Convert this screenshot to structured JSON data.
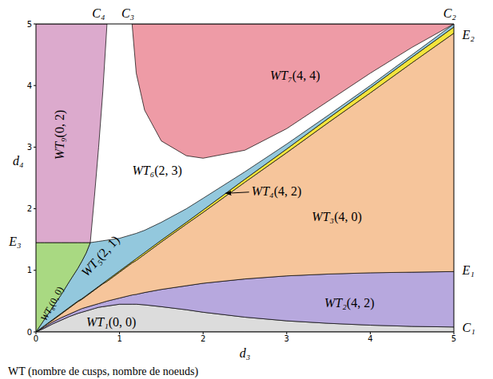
{
  "chart_data": {
    "type": "area",
    "x_label": "d₃",
    "y_label": "d₄",
    "caption": "WT (nombre de cusps, nombre de noeuds)",
    "xlim": [
      0,
      5
    ],
    "ylim": [
      0,
      5
    ],
    "xticks": [
      0,
      1,
      2,
      3,
      4,
      5
    ],
    "yticks": [
      0,
      1,
      2,
      3,
      4,
      5
    ],
    "grid": false,
    "x": [
      0,
      0.05,
      0.1,
      0.2,
      0.3,
      0.4,
      0.5,
      0.55,
      0.6,
      0.65,
      0.7,
      0.75,
      0.8,
      0.85,
      1,
      1.15,
      1.2,
      1.3,
      1.5,
      1.8,
      2,
      2.5,
      3,
      3.5,
      4,
      4.5,
      5
    ],
    "series": [
      {
        "name": "WT₁(0, 0)",
        "color": "#dcdcdc",
        "label_at": [
          0.9,
          0.14
        ],
        "lower": [
          0,
          0,
          0,
          0,
          0,
          0,
          0,
          0,
          0,
          0,
          0,
          0,
          0,
          0,
          0,
          0,
          0,
          0,
          0,
          0,
          0,
          0,
          0,
          0,
          0,
          0,
          0
        ],
        "upper": [
          0,
          0.03,
          0.06,
          0.13,
          0.19,
          0.25,
          0.3,
          0.32,
          0.34,
          0.36,
          0.38,
          0.4,
          0.41,
          0.42,
          0.45,
          0.45,
          0.45,
          0.44,
          0.41,
          0.36,
          0.32,
          0.24,
          0.18,
          0.14,
          0.11,
          0.09,
          0.08
        ]
      },
      {
        "name": "WT₂(4, 2)",
        "color": "#b7a8de",
        "label_at": [
          3.75,
          0.45
        ],
        "lower": [
          0,
          0.03,
          0.06,
          0.13,
          0.19,
          0.25,
          0.3,
          0.32,
          0.34,
          0.36,
          0.38,
          0.4,
          0.41,
          0.42,
          0.45,
          0.45,
          0.45,
          0.44,
          0.41,
          0.36,
          0.32,
          0.24,
          0.18,
          0.14,
          0.11,
          0.09,
          0.08
        ],
        "upper": [
          0,
          0.04,
          0.08,
          0.16,
          0.23,
          0.29,
          0.35,
          0.38,
          0.4,
          0.42,
          0.44,
          0.46,
          0.48,
          0.5,
          0.55,
          0.6,
          0.61,
          0.64,
          0.69,
          0.75,
          0.79,
          0.86,
          0.91,
          0.94,
          0.96,
          0.97,
          0.98
        ]
      },
      {
        "name": "WT₃(4, 0)",
        "color": "#f6c59b",
        "label_at": [
          3.6,
          1.85
        ],
        "lower": [
          0,
          0.04,
          0.08,
          0.16,
          0.23,
          0.29,
          0.35,
          0.38,
          0.4,
          0.42,
          0.44,
          0.46,
          0.48,
          0.5,
          0.55,
          0.6,
          0.61,
          0.64,
          0.69,
          0.75,
          0.79,
          0.86,
          0.91,
          0.94,
          0.96,
          0.97,
          0.98
        ],
        "upper": [
          0,
          0.05,
          0.1,
          0.19,
          0.29,
          0.39,
          0.49,
          0.53,
          0.58,
          0.63,
          0.68,
          0.73,
          0.78,
          0.82,
          0.97,
          1.12,
          1.16,
          1.26,
          1.46,
          1.75,
          1.94,
          2.43,
          2.91,
          3.4,
          3.88,
          4.37,
          4.85
        ]
      },
      {
        "name": "WT₄(4, 2)",
        "color": "#f3e43c",
        "label_at": [
          2.58,
          2.27
        ],
        "arrow": [
          {
            "x": 2.55,
            "y": 2.27
          },
          {
            "x": 2.27,
            "y": 2.25
          }
        ],
        "lower": [
          0,
          0.05,
          0.1,
          0.19,
          0.29,
          0.39,
          0.49,
          0.53,
          0.58,
          0.63,
          0.68,
          0.73,
          0.78,
          0.82,
          0.97,
          1.12,
          1.16,
          1.26,
          1.46,
          1.75,
          1.94,
          2.43,
          2.91,
          3.4,
          3.88,
          4.37,
          4.85
        ],
        "upper": [
          0,
          0.05,
          0.1,
          0.2,
          0.3,
          0.4,
          0.5,
          0.54,
          0.59,
          0.64,
          0.69,
          0.74,
          0.79,
          0.84,
          0.99,
          1.14,
          1.19,
          1.29,
          1.49,
          1.78,
          1.98,
          2.48,
          2.97,
          3.47,
          3.96,
          4.46,
          4.95
        ]
      },
      {
        "name": "WT₅(2, 1)",
        "color": "#93c8dd",
        "label_at": [
          0.78,
          1.22
        ],
        "lower": [
          0,
          0.05,
          0.1,
          0.2,
          0.3,
          0.4,
          0.5,
          0.54,
          0.59,
          0.64,
          0.69,
          0.74,
          0.79,
          0.84,
          0.99,
          1.14,
          1.19,
          1.29,
          1.49,
          1.78,
          1.98,
          2.48,
          2.97,
          3.47,
          3.96,
          4.46,
          4.95
        ],
        "upper": [
          0,
          0.1,
          0.2,
          0.4,
          0.6,
          0.82,
          1.03,
          1.15,
          1.28,
          1.45,
          1.46,
          1.47,
          1.48,
          1.49,
          1.52,
          1.58,
          1.6,
          1.65,
          1.78,
          2.0,
          2.17,
          2.6,
          3.05,
          3.52,
          4.0,
          4.5,
          5
        ]
      },
      {
        "name": "WT₈(0, 0)",
        "color": "#a9d982",
        "label_at": [
          0.2,
          0.45
        ],
        "lower": [
          0,
          0.1,
          0.2,
          0.4,
          0.6,
          0.82,
          1.03,
          1.15,
          1.28,
          1.45,
          null,
          null,
          null,
          null,
          null,
          null,
          null,
          null,
          null,
          null,
          null,
          null,
          null,
          null,
          null,
          null,
          null
        ],
        "upper": [
          1.45,
          1.45,
          1.45,
          1.45,
          1.45,
          1.45,
          1.45,
          1.45,
          1.45,
          1.45,
          null,
          null,
          null,
          null,
          null,
          null,
          null,
          null,
          null,
          null,
          null,
          null,
          null,
          null,
          null,
          null,
          null
        ]
      },
      {
        "name": "WT₉(0, 2)",
        "color": "#dcaacd",
        "label_at": [
          0.3,
          3.2
        ],
        "lower": [
          1.45,
          1.45,
          1.45,
          1.45,
          1.45,
          1.45,
          1.45,
          1.45,
          1.45,
          1.45,
          2.2,
          3.0,
          3.9,
          5,
          null,
          null,
          null,
          null,
          null,
          null,
          null,
          null,
          null,
          null,
          null,
          null,
          null
        ],
        "upper": [
          5,
          5,
          5,
          5,
          5,
          5,
          5,
          5,
          5,
          5,
          5,
          5,
          5,
          5,
          null,
          null,
          null,
          null,
          null,
          null,
          null,
          null,
          null,
          null,
          null,
          null,
          null
        ]
      },
      {
        "name": "WT₇(4, 4)",
        "color": "#ee9ba6",
        "label_at": [
          3.1,
          4.15
        ],
        "lower": [
          null,
          null,
          null,
          null,
          null,
          null,
          null,
          null,
          null,
          null,
          null,
          null,
          null,
          null,
          null,
          5,
          4.2,
          3.6,
          3.1,
          2.86,
          2.82,
          2.95,
          3.3,
          3.75,
          4.2,
          4.62,
          5
        ],
        "upper": [
          null,
          null,
          null,
          null,
          null,
          null,
          null,
          null,
          null,
          null,
          null,
          null,
          null,
          null,
          null,
          5,
          5,
          5,
          5,
          5,
          5,
          5,
          5,
          5,
          5,
          5,
          5
        ]
      },
      {
        "name": "WT₆(2, 3)",
        "color": "#ffffff",
        "label_at": [
          1.45,
          2.6
        ]
      }
    ],
    "annotations": [
      {
        "text": "C₁",
        "x": 5.1,
        "y": 0.05
      },
      {
        "text": "E₁",
        "x": 5.1,
        "y": 0.98
      },
      {
        "text": "E₂",
        "x": 5.1,
        "y": 4.8
      },
      {
        "text": "C₂",
        "x": 4.95,
        "y": 5.1
      },
      {
        "text": "C₃",
        "x": 1.1,
        "y": 5.1
      },
      {
        "text": "C₄",
        "x": 0.75,
        "y": 5.1
      },
      {
        "text": "E₃",
        "x": -0.25,
        "y": 1.45
      }
    ]
  }
}
